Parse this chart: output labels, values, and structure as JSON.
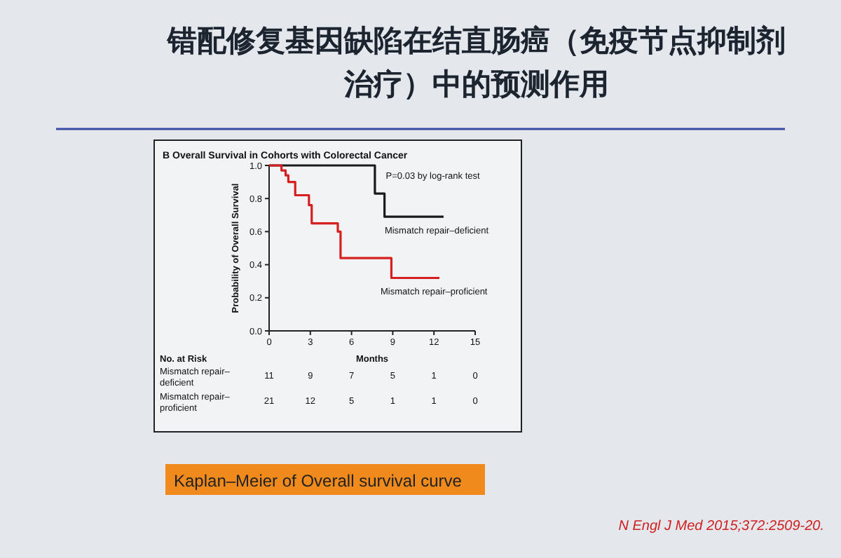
{
  "chart_data": {
    "type": "step",
    "title": "错配修复基因缺陷在结直肠癌（免疫节点抑制剂治疗）中的预测作用",
    "subtitle": "B Overall Survival in Cohorts with Colorectal Cancer",
    "xlabel": "Months",
    "ylabel": "Probability of Overall Survival",
    "series": [
      {
        "name": "Mismatch repair–deficient",
        "color": "#1a1a1a",
        "x": [
          0,
          7.7,
          8.4,
          12.7
        ],
        "values": [
          1.0,
          0.83,
          0.69,
          0.69
        ]
      },
      {
        "name": "Mismatch repair–proficient",
        "color": "#d62020",
        "x": [
          0,
          0.9,
          1.2,
          1.4,
          1.9,
          2.9,
          3.1,
          5.0,
          5.2,
          8.9,
          12.4
        ],
        "values": [
          1.0,
          0.97,
          0.94,
          0.9,
          0.82,
          0.76,
          0.65,
          0.6,
          0.44,
          0.32,
          0.32
        ]
      }
    ],
    "xlim": [
      0,
      15
    ],
    "xticks": [
      0,
      3,
      6,
      9,
      12,
      15
    ],
    "ylim": [
      0,
      1
    ],
    "yticks": [
      {
        "value": 0,
        "label": "0.0"
      },
      0.2,
      0.4,
      0.6,
      0.8,
      {
        "value": 1,
        "label": "1.0"
      }
    ],
    "marker": "none",
    "line_style": "solid",
    "grid": false,
    "legend": false,
    "annotations": [
      "P=0.03 by log-rank test",
      "No. at Risk",
      "Mismatch repair–deficient",
      "11",
      "9",
      "7",
      "5",
      "1",
      "0",
      "Mismatch repair–proficient",
      "21",
      "12",
      "5",
      "1",
      "1",
      "0",
      "Kaplan–Meier of Overall survival curve",
      "N Engl J Med 2015;372:2509-20."
    ]
  }
}
